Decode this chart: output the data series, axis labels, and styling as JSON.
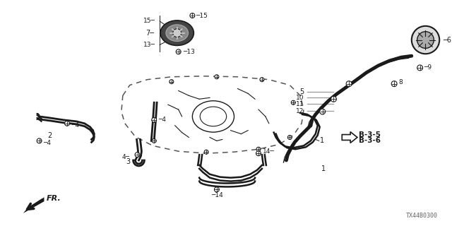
{
  "background_color": "#ffffff",
  "diagram_id": "TX44B0300",
  "arrow_label": "FR.",
  "reference_labels": [
    "B-3-5",
    "B-3-6"
  ],
  "fig_width": 6.4,
  "fig_height": 3.2
}
